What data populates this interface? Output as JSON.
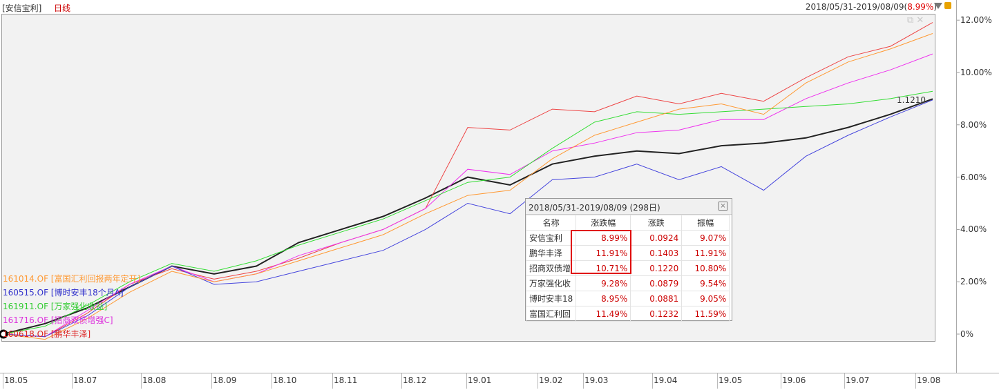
{
  "header": {
    "fund_name": "[安信宝利]",
    "period_label": "日线",
    "range_text": "2018/05/31-2019/08/09(",
    "range_pct": "8.99%",
    "range_close": ")"
  },
  "chart_data": {
    "type": "line",
    "y_axis_labels": [
      "12.00%",
      "10.00%",
      "8.00%",
      "6.00%",
      "4.00%",
      "2.00%",
      "0%"
    ],
    "ylim": [
      -0.5,
      12.5
    ],
    "x_axis_labels": [
      "18.05",
      "18.07",
      "18.08",
      "18.09",
      "18.10",
      "18.11",
      "18.12",
      "19.01",
      "19.02",
      "19.03",
      "19.04",
      "19.05",
      "19.06",
      "19.07",
      "19.08"
    ],
    "last_price": "1.1210",
    "series": [
      {
        "name": "安信宝利",
        "color": "#222222",
        "values": [
          0,
          0.4,
          1.0,
          1.8,
          2.6,
          2.3,
          2.6,
          3.5,
          4.0,
          4.5,
          5.2,
          6.0,
          5.7,
          6.5,
          6.8,
          7.0,
          6.9,
          7.2,
          7.3,
          7.5,
          7.9,
          8.4,
          8.99
        ]
      },
      {
        "name": "鹏华丰泽",
        "color": "#ee4444",
        "values": [
          0,
          -0.1,
          0.8,
          1.9,
          2.5,
          2.1,
          2.4,
          2.9,
          3.5,
          4.0,
          4.8,
          7.9,
          7.8,
          8.6,
          8.5,
          9.1,
          8.8,
          9.2,
          8.9,
          9.8,
          10.6,
          11.0,
          11.91
        ]
      },
      {
        "name": "招商双债增强C",
        "color": "#ee33ee",
        "values": [
          0,
          -0.1,
          0.9,
          1.9,
          2.6,
          2.0,
          2.3,
          3.0,
          3.5,
          4.0,
          4.8,
          6.3,
          6.1,
          7.0,
          7.3,
          7.7,
          7.8,
          8.2,
          8.2,
          9.0,
          9.6,
          10.1,
          10.71
        ]
      },
      {
        "name": "万家强化收益",
        "color": "#33dd33",
        "values": [
          0,
          0.3,
          1.1,
          2.0,
          2.7,
          2.4,
          2.8,
          3.4,
          3.9,
          4.4,
          5.1,
          5.8,
          6.0,
          7.1,
          8.1,
          8.5,
          8.4,
          8.5,
          8.6,
          8.7,
          8.8,
          9.0,
          9.28
        ]
      },
      {
        "name": "博时安丰18个月A",
        "color": "#4444dd",
        "values": [
          0,
          -0.1,
          0.7,
          1.8,
          2.6,
          1.9,
          2.0,
          2.4,
          2.8,
          3.2,
          4.0,
          5.0,
          4.6,
          5.9,
          6.0,
          6.5,
          5.9,
          6.4,
          5.5,
          6.8,
          7.6,
          8.3,
          8.95
        ]
      },
      {
        "name": "富国汇利回报两年定开",
        "color": "#ff9933",
        "values": [
          0,
          -0.2,
          0.6,
          1.6,
          2.4,
          2.0,
          2.3,
          2.8,
          3.3,
          3.8,
          4.6,
          5.3,
          5.5,
          6.7,
          7.6,
          8.1,
          8.6,
          8.8,
          8.4,
          9.6,
          10.4,
          10.9,
          11.49
        ]
      }
    ]
  },
  "legend": {
    "items": [
      {
        "label": "161014.OF [富国汇利回报两年定开]",
        "color": "#ff9933"
      },
      {
        "label": "160515.OF [博时安丰18个月A]",
        "color": "#3333cc"
      },
      {
        "label": "161911.OF [万家强化收益]",
        "color": "#33cc33"
      },
      {
        "label": "161716.OF [招商双债增强C]",
        "color": "#dd33dd"
      },
      {
        "label": "160618.OF [鹏华丰泽]",
        "color": "#dd2222"
      }
    ]
  },
  "popup": {
    "title": "2018/05/31-2019/08/09 (298日)",
    "columns": [
      "名称",
      "涨跌幅",
      "涨跌",
      "振幅"
    ],
    "rows": [
      [
        "安信宝利",
        "8.99%",
        "0.0924",
        "9.07%"
      ],
      [
        "鹏华丰泽",
        "11.91%",
        "0.1403",
        "11.91%"
      ],
      [
        "招商双债增",
        "10.71%",
        "0.1220",
        "10.80%"
      ],
      [
        "万家强化收",
        "9.28%",
        "0.0879",
        "9.54%"
      ],
      [
        "博时安丰18",
        "8.95%",
        "0.0881",
        "9.05%"
      ],
      [
        "富国汇利回",
        "11.49%",
        "0.1232",
        "11.59%"
      ]
    ]
  }
}
